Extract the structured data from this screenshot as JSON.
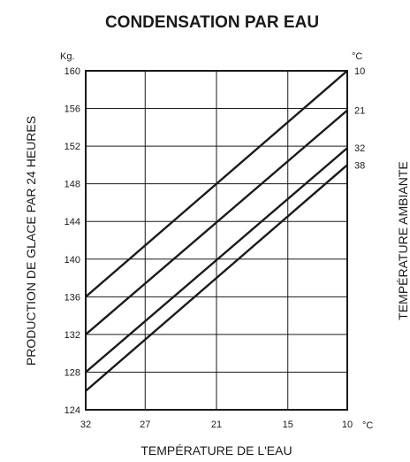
{
  "chart_data": {
    "type": "line",
    "title": "CONDENSATION PAR EAU",
    "xlabel": "TEMPÉRATURE DE L'EAU",
    "ylabel": "PRODUCTION DE GLACE PAR 24 HEURES",
    "y2label": "TEMPÉRATURE AMBIANTE",
    "y_unit": "Kg.",
    "x_unit": "°C",
    "series_unit": "°C",
    "x_ticks": [
      "32",
      "27",
      "21",
      "15",
      "10"
    ],
    "y_ticks": [
      "124",
      "128",
      "132",
      "136",
      "140",
      "144",
      "148",
      "152",
      "156",
      "160"
    ],
    "xlim": [
      32,
      10
    ],
    "ylim": [
      124,
      160
    ],
    "grid": true,
    "series": [
      {
        "name": "10",
        "x": [
          32,
          10
        ],
        "y": [
          136,
          160
        ]
      },
      {
        "name": "21",
        "x": [
          32,
          10
        ],
        "y": [
          132,
          155.8
        ]
      },
      {
        "name": "32",
        "x": [
          32,
          10
        ],
        "y": [
          128,
          151.8
        ]
      },
      {
        "name": "38",
        "x": [
          32,
          10
        ],
        "y": [
          126,
          150
        ]
      }
    ]
  }
}
